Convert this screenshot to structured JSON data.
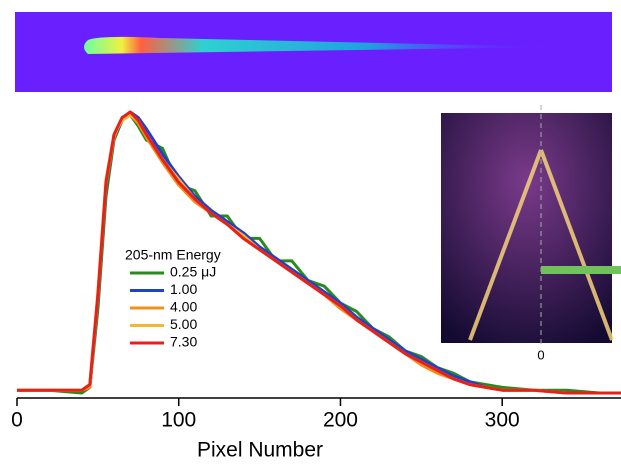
{
  "chart_data": {
    "type": "line",
    "x_label": "Pixel Number",
    "legend_title": "205-nm Energy",
    "annotations": [
      "0"
    ],
    "x": [
      0,
      20,
      40,
      45,
      50,
      55,
      60,
      65,
      70,
      75,
      80,
      90,
      100,
      110,
      120,
      130,
      140,
      150,
      160,
      170,
      180,
      190,
      200,
      210,
      220,
      230,
      240,
      250,
      260,
      270,
      280,
      290,
      300,
      320,
      340,
      360,
      375
    ],
    "series": [
      {
        "name": "0.25  μJ",
        "color": "#2a8a1e",
        "values": [
          0.01,
          0.01,
          0.0,
          0.02,
          0.3,
          0.7,
          0.9,
          0.97,
          0.99,
          0.95,
          0.9,
          0.87,
          0.74,
          0.72,
          0.63,
          0.63,
          0.55,
          0.55,
          0.47,
          0.47,
          0.4,
          0.38,
          0.32,
          0.29,
          0.23,
          0.2,
          0.15,
          0.13,
          0.09,
          0.07,
          0.04,
          0.03,
          0.02,
          0.01,
          0.01,
          0.0,
          0.0
        ]
      },
      {
        "name": "1.00",
        "color": "#1f3fcf",
        "values": [
          0.01,
          0.01,
          0.01,
          0.02,
          0.33,
          0.73,
          0.91,
          0.97,
          1.0,
          0.98,
          0.94,
          0.85,
          0.77,
          0.7,
          0.65,
          0.61,
          0.57,
          0.52,
          0.48,
          0.44,
          0.4,
          0.36,
          0.32,
          0.27,
          0.23,
          0.19,
          0.15,
          0.12,
          0.09,
          0.06,
          0.04,
          0.02,
          0.01,
          0.01,
          0.0,
          0.0,
          0.0
        ]
      },
      {
        "name": "4.00",
        "color": "#f0901a",
        "values": [
          0.01,
          0.01,
          0.01,
          0.02,
          0.34,
          0.74,
          0.91,
          0.98,
          0.99,
          0.96,
          0.91,
          0.82,
          0.74,
          0.68,
          0.64,
          0.6,
          0.55,
          0.51,
          0.47,
          0.43,
          0.39,
          0.35,
          0.3,
          0.26,
          0.22,
          0.18,
          0.14,
          0.1,
          0.07,
          0.05,
          0.03,
          0.02,
          0.01,
          0.01,
          0.0,
          0.0,
          0.0
        ]
      },
      {
        "name": "5.00",
        "color": "#f5b630",
        "values": [
          0.01,
          0.01,
          0.01,
          0.03,
          0.36,
          0.76,
          0.92,
          0.97,
          0.99,
          0.97,
          0.92,
          0.83,
          0.76,
          0.69,
          0.64,
          0.6,
          0.56,
          0.51,
          0.47,
          0.43,
          0.39,
          0.35,
          0.31,
          0.26,
          0.22,
          0.18,
          0.14,
          0.11,
          0.08,
          0.05,
          0.03,
          0.02,
          0.01,
          0.01,
          0.0,
          0.0,
          0.0
        ]
      },
      {
        "name": "7.30",
        "color": "#e8201a",
        "values": [
          0.01,
          0.01,
          0.01,
          0.03,
          0.35,
          0.75,
          0.92,
          0.98,
          1.0,
          0.97,
          0.92,
          0.83,
          0.75,
          0.69,
          0.64,
          0.6,
          0.55,
          0.51,
          0.47,
          0.43,
          0.39,
          0.35,
          0.31,
          0.26,
          0.22,
          0.18,
          0.14,
          0.11,
          0.08,
          0.05,
          0.03,
          0.02,
          0.01,
          0.01,
          0.0,
          0.0,
          0.0
        ]
      }
    ],
    "xlim": [
      0,
      375
    ],
    "xticks": [
      0,
      100,
      200,
      300
    ],
    "ylim": [
      0,
      1
    ]
  }
}
